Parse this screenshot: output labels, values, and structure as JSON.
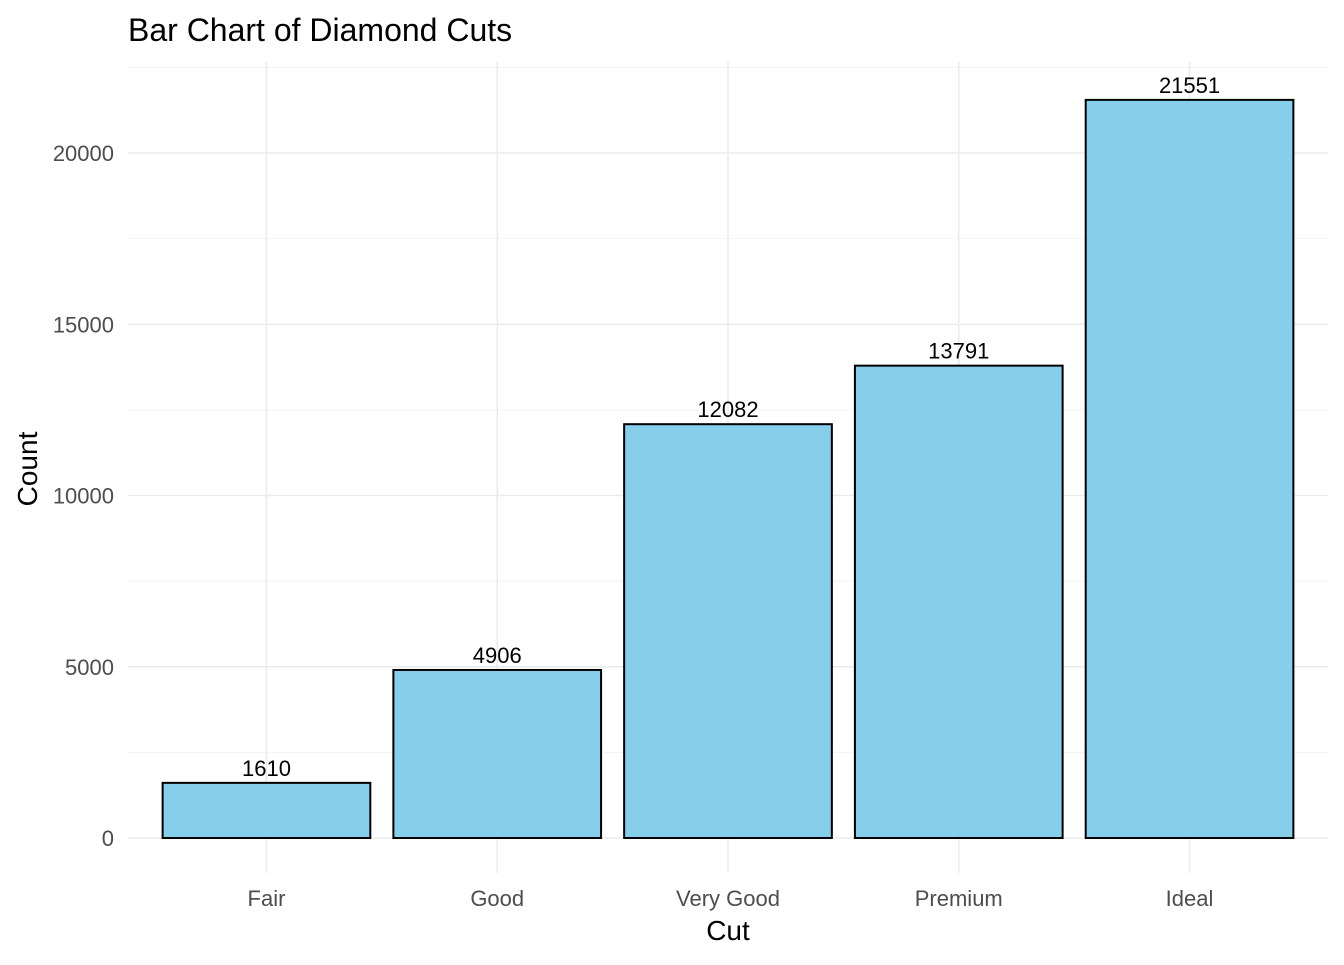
{
  "chart_data": {
    "type": "bar",
    "title": "Bar Chart of Diamond Cuts",
    "xlabel": "Cut",
    "ylabel": "Count",
    "categories": [
      "Fair",
      "Good",
      "Very Good",
      "Premium",
      "Ideal"
    ],
    "values": [
      1610,
      4906,
      12082,
      13791,
      21551
    ],
    "ylim": [
      0,
      22500
    ],
    "yticks": [
      0,
      5000,
      10000,
      15000,
      20000
    ],
    "grid": true,
    "legend": "none",
    "colors": {
      "bar_fill": "#87ceeb",
      "bar_stroke": "#000000"
    }
  }
}
